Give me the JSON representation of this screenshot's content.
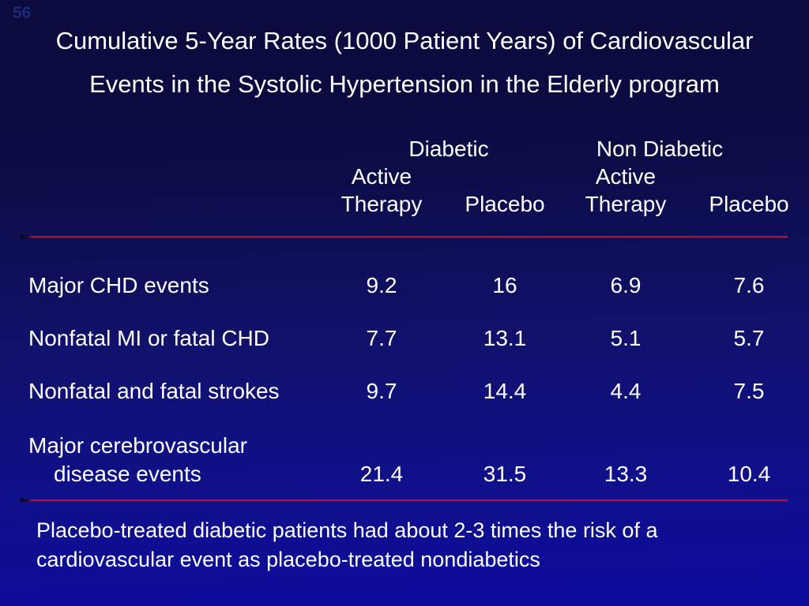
{
  "slide": {
    "slide_number": "56",
    "title": {
      "line1": "Cumulative 5-Year Rates (1000 Patient Years) of Cardiovascular",
      "line2": "Events in the Systolic Hypertension in the Elderly program"
    },
    "note": {
      "line1": "Placebo-treated diabetic patients had about 2-3 times the risk of a",
      "line2": "cardiovascular event as placebo-treated nondiabetics"
    }
  },
  "table": {
    "group_headers": {
      "diabetic": "Diabetic",
      "non_diabetic": "Non Diabetic"
    },
    "active_label_diabetic": "Active",
    "active_label_non_diabetic": "Active",
    "column_headers": [
      "Therapy",
      "Placebo",
      "Therapy",
      "Placebo"
    ],
    "rows": [
      {
        "label": "Major CHD events",
        "values": [
          "9.2",
          "16",
          "6.9",
          "7.6"
        ]
      },
      {
        "label": "Nonfatal MI or fatal CHD",
        "values": [
          "7.7",
          "13.1",
          "5.1",
          "5.7"
        ]
      },
      {
        "label": "Nonfatal and fatal strokes",
        "values": [
          "9.7",
          "14.4",
          "4.4",
          "7.5"
        ]
      },
      {
        "label": "Major cerebrovascular",
        "label_line2": "disease events",
        "values": [
          "21.4",
          "31.5",
          "13.3",
          "10.4"
        ]
      }
    ]
  },
  "colors": {
    "background_top": "#0a0a3c",
    "background_bottom": "#0c0c9e",
    "divider_red": "#b11237",
    "text": "#ffffff"
  }
}
